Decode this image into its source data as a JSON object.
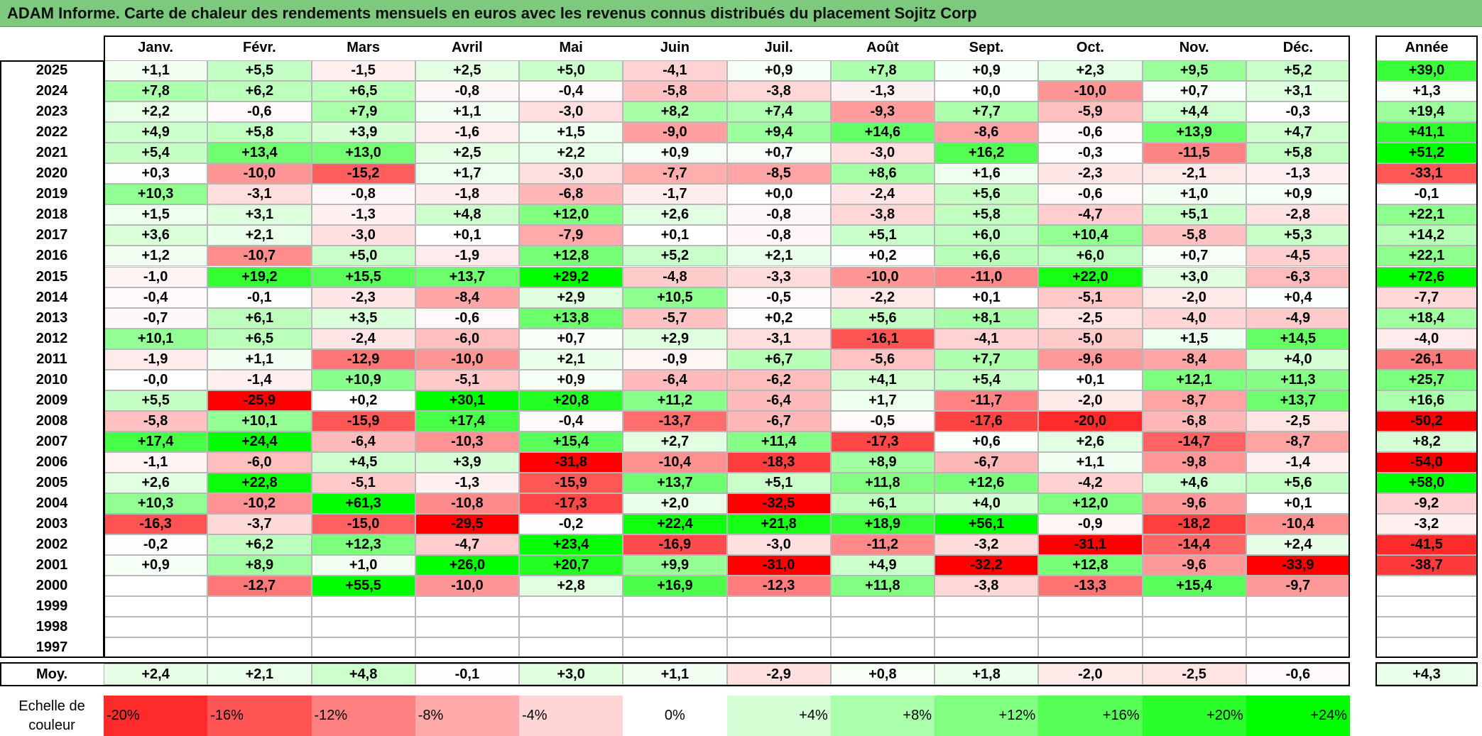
{
  "title": "ADAM Informe. Carte de chaleur des rendements mensuels en euros avec les revenus connus distribués du placement Sojitz Corp",
  "chart_data": {
    "type": "heatmap",
    "title": "ADAM Informe. Carte de chaleur des rendements mensuels en euros avec les revenus connus distribués du placement Sojitz Corp",
    "months": [
      "Janv.",
      "Févr.",
      "Mars",
      "Avril",
      "Mai",
      "Juin",
      "Juil.",
      "Août",
      "Sept.",
      "Oct.",
      "Nov.",
      "Déc."
    ],
    "annual_header": "Année",
    "rows": [
      {
        "year": "2025",
        "values": [
          "+1,1",
          "+5,5",
          "-1,5",
          "+2,5",
          "+5,0",
          "-4,1",
          "+0,9",
          "+7,8",
          "+0,9",
          "+2,3",
          "+9,5",
          "+5,2"
        ],
        "annual": "+39,0"
      },
      {
        "year": "2024",
        "values": [
          "+7,8",
          "+6,2",
          "+6,5",
          "-0,8",
          "-0,4",
          "-5,8",
          "-3,8",
          "-1,3",
          "+0,0",
          "-10,0",
          "+0,7",
          "+3,1"
        ],
        "annual": "+1,3"
      },
      {
        "year": "2023",
        "values": [
          "+2,2",
          "-0,6",
          "+7,9",
          "+1,1",
          "-3,0",
          "+8,2",
          "+7,4",
          "-9,3",
          "+7,7",
          "-5,9",
          "+4,4",
          "-0,3"
        ],
        "annual": "+19,4"
      },
      {
        "year": "2022",
        "values": [
          "+4,9",
          "+5,8",
          "+3,9",
          "-1,6",
          "+1,5",
          "-9,0",
          "+9,4",
          "+14,6",
          "-8,6",
          "-0,6",
          "+13,9",
          "+4,7"
        ],
        "annual": "+41,1"
      },
      {
        "year": "2021",
        "values": [
          "+5,4",
          "+13,4",
          "+13,0",
          "+2,5",
          "+2,2",
          "+0,9",
          "+0,7",
          "-3,0",
          "+16,2",
          "-0,3",
          "-11,5",
          "+5,8"
        ],
        "annual": "+51,2"
      },
      {
        "year": "2020",
        "values": [
          "+0,3",
          "-10,0",
          "-15,2",
          "+1,7",
          "-3,0",
          "-7,7",
          "-8,5",
          "+8,6",
          "+1,6",
          "-2,3",
          "-2,1",
          "-1,3"
        ],
        "annual": "-33,1"
      },
      {
        "year": "2019",
        "values": [
          "+10,3",
          "-3,1",
          "-0,8",
          "-1,8",
          "-6,8",
          "-1,7",
          "+0,0",
          "-2,4",
          "+5,6",
          "-0,6",
          "+1,0",
          "+0,9"
        ],
        "annual": "-0,1"
      },
      {
        "year": "2018",
        "values": [
          "+1,5",
          "+3,1",
          "-1,3",
          "+4,8",
          "+12,0",
          "+2,6",
          "-0,8",
          "-3,8",
          "+5,8",
          "-4,7",
          "+5,1",
          "-2,8"
        ],
        "annual": "+22,1"
      },
      {
        "year": "2017",
        "values": [
          "+3,6",
          "+2,1",
          "-3,0",
          "+0,1",
          "-7,9",
          "+0,1",
          "-0,8",
          "+5,1",
          "+6,0",
          "+10,4",
          "-5,8",
          "+5,3"
        ],
        "annual": "+14,2"
      },
      {
        "year": "2016",
        "values": [
          "+1,2",
          "-10,7",
          "+5,0",
          "-1,9",
          "+12,8",
          "+5,2",
          "+2,1",
          "+0,2",
          "+6,6",
          "+6,0",
          "+0,7",
          "-4,5"
        ],
        "annual": "+22,1"
      },
      {
        "year": "2015",
        "values": [
          "-1,0",
          "+19,2",
          "+15,5",
          "+13,7",
          "+29,2",
          "-4,8",
          "-3,3",
          "-10,0",
          "-11,0",
          "+22,0",
          "+3,0",
          "-6,3"
        ],
        "annual": "+72,6"
      },
      {
        "year": "2014",
        "values": [
          "-0,4",
          "-0,1",
          "-2,3",
          "-8,4",
          "+2,9",
          "+10,5",
          "-0,5",
          "-2,2",
          "+0,1",
          "-5,1",
          "-2,0",
          "+0,4"
        ],
        "annual": "-7,7"
      },
      {
        "year": "2013",
        "values": [
          "-0,7",
          "+6,1",
          "+3,5",
          "-0,6",
          "+13,8",
          "-5,7",
          "+0,2",
          "+5,6",
          "+8,1",
          "-2,5",
          "-4,0",
          "-4,9"
        ],
        "annual": "+18,4"
      },
      {
        "year": "2012",
        "values": [
          "+10,1",
          "+6,5",
          "-2,4",
          "-6,0",
          "+0,7",
          "+2,9",
          "-3,1",
          "-16,1",
          "-4,1",
          "-5,0",
          "+1,5",
          "+14,5"
        ],
        "annual": "-4,0"
      },
      {
        "year": "2011",
        "values": [
          "-1,9",
          "+1,1",
          "-12,9",
          "-10,0",
          "+2,1",
          "-0,9",
          "+6,7",
          "-5,6",
          "+7,7",
          "-9,6",
          "-8,4",
          "+4,0"
        ],
        "annual": "-26,1"
      },
      {
        "year": "2010",
        "values": [
          "-0,0",
          "-1,4",
          "+10,9",
          "-5,1",
          "+0,9",
          "-6,4",
          "-6,2",
          "+4,1",
          "+5,4",
          "+0,1",
          "+12,1",
          "+11,3"
        ],
        "annual": "+25,7"
      },
      {
        "year": "2009",
        "values": [
          "+5,5",
          "-25,9",
          "+0,2",
          "+30,1",
          "+20,8",
          "+11,2",
          "-6,4",
          "+1,7",
          "-11,7",
          "-2,0",
          "-8,7",
          "+13,7"
        ],
        "annual": "+16,6"
      },
      {
        "year": "2008",
        "values": [
          "-5,8",
          "+10,1",
          "-15,9",
          "+17,4",
          "-0,4",
          "-13,7",
          "-6,7",
          "-0,5",
          "-17,6",
          "-20,0",
          "-6,8",
          "-2,5"
        ],
        "annual": "-50,2"
      },
      {
        "year": "2007",
        "values": [
          "+17,4",
          "+24,4",
          "-6,4",
          "-10,3",
          "+15,4",
          "+2,7",
          "+11,4",
          "-17,3",
          "+0,6",
          "+2,6",
          "-14,7",
          "-8,7"
        ],
        "annual": "+8,2"
      },
      {
        "year": "2006",
        "values": [
          "-1,1",
          "-6,0",
          "+4,5",
          "+3,9",
          "-31,8",
          "-10,4",
          "-18,3",
          "+8,9",
          "-6,7",
          "+1,1",
          "-9,8",
          "-1,4"
        ],
        "annual": "-54,0"
      },
      {
        "year": "2005",
        "values": [
          "+2,6",
          "+22,8",
          "-5,1",
          "-1,3",
          "-15,9",
          "+13,7",
          "+5,1",
          "+11,8",
          "+12,6",
          "-4,2",
          "+4,6",
          "+5,6"
        ],
        "annual": "+58,0"
      },
      {
        "year": "2004",
        "values": [
          "+10,3",
          "-10,2",
          "+61,3",
          "-10,8",
          "-17,3",
          "+2,0",
          "-32,5",
          "+6,1",
          "+4,0",
          "+12,0",
          "-9,6",
          "+0,1"
        ],
        "annual": "-9,2"
      },
      {
        "year": "2003",
        "values": [
          "-16,3",
          "-3,7",
          "-15,0",
          "-29,5",
          "-0,2",
          "+22,4",
          "+21,8",
          "+18,9",
          "+56,1",
          "-0,9",
          "-18,2",
          "-10,4"
        ],
        "annual": "-3,2"
      },
      {
        "year": "2002",
        "values": [
          "-0,2",
          "+6,2",
          "+12,3",
          "-4,7",
          "+23,4",
          "-16,9",
          "-3,0",
          "-11,2",
          "-3,2",
          "-31,1",
          "-14,4",
          "+2,4"
        ],
        "annual": "-41,5"
      },
      {
        "year": "2001",
        "values": [
          "+0,9",
          "+8,9",
          "+1,0",
          "+26,0",
          "+20,7",
          "+9,9",
          "-31,0",
          "+4,9",
          "-32,2",
          "+12,8",
          "-9,6",
          "-33,9"
        ],
        "annual": "-38,7"
      },
      {
        "year": "2000",
        "values": [
          "",
          "-12,7",
          "+55,5",
          "-10,0",
          "+2,8",
          "+16,9",
          "-12,3",
          "+11,8",
          "-3,8",
          "-13,3",
          "+15,4",
          "-9,7"
        ],
        "annual": ""
      },
      {
        "year": "1999",
        "values": [
          "",
          "",
          "",
          "",
          "",
          "",
          "",
          "",
          "",
          "",
          "",
          ""
        ],
        "annual": ""
      },
      {
        "year": "1998",
        "values": [
          "",
          "",
          "",
          "",
          "",
          "",
          "",
          "",
          "",
          "",
          "",
          ""
        ],
        "annual": ""
      },
      {
        "year": "1997",
        "values": [
          "",
          "",
          "",
          "",
          "",
          "",
          "",
          "",
          "",
          "",
          "",
          ""
        ],
        "annual": ""
      }
    ],
    "average": {
      "label": "Moy.",
      "values": [
        "+2,4",
        "+2,1",
        "+4,8",
        "-0,1",
        "+3,0",
        "+1,1",
        "-2,9",
        "+0,8",
        "+1,8",
        "-2,0",
        "-2,5",
        "-0,6"
      ],
      "annual": "+4,3"
    },
    "color_scale": {
      "label": "Echelle de couleur",
      "steps": [
        "-20%",
        "-16%",
        "-12%",
        "-8%",
        "-4%",
        "0%",
        "+4%",
        "+8%",
        "+12%",
        "+16%",
        "+20%",
        "+24%"
      ],
      "step_values": [
        -20,
        -16,
        -12,
        -8,
        -4,
        0,
        4,
        8,
        12,
        16,
        20,
        24
      ],
      "negative_color": "#ff0000",
      "positive_color": "#00ff00",
      "neutral_color": "#ffffff"
    }
  }
}
